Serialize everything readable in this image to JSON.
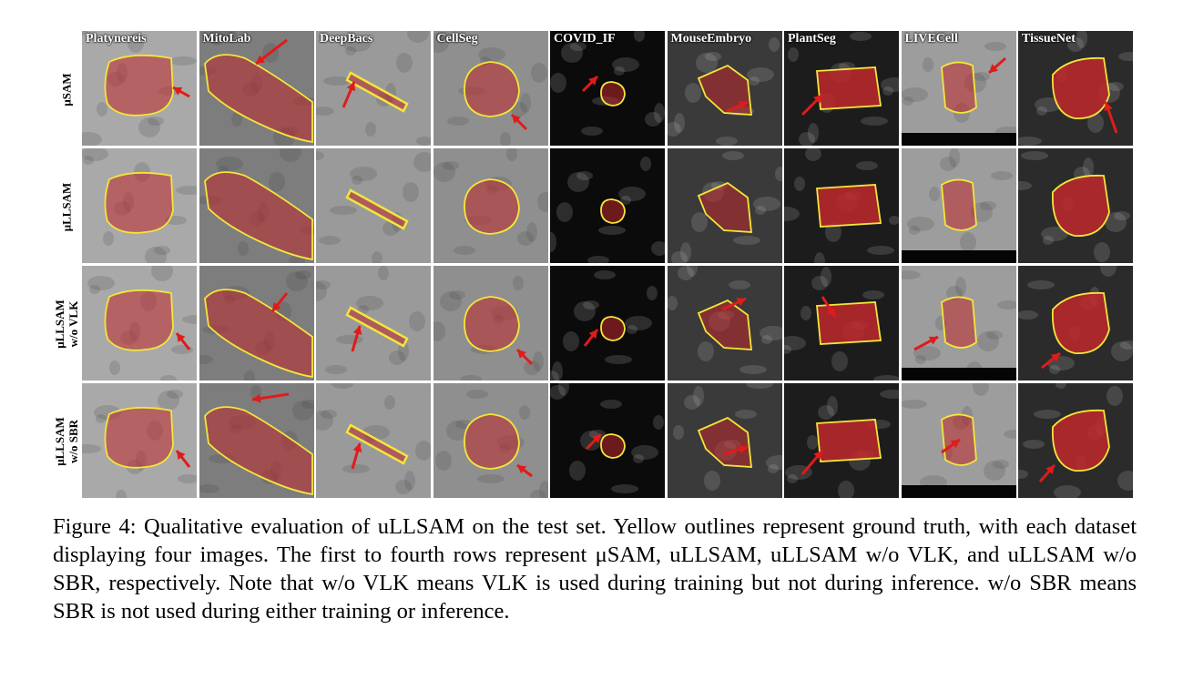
{
  "figure": {
    "columns": [
      "Platynereis",
      "MitoLab",
      "DeepBacs",
      "CellSeg",
      "COVID_IF",
      "MouseEmbryo",
      "PlantSeg",
      "LIVECell",
      "TissueNet"
    ],
    "rows": [
      {
        "label_line1": "μSAM",
        "label_line2": ""
      },
      {
        "label_line1": "μLLSAM",
        "label_line2": ""
      },
      {
        "label_line1": "μLLSAM",
        "label_line2": "w/o VLK"
      },
      {
        "label_line1": "μLLSAM",
        "label_line2": "w/o SBR"
      }
    ],
    "colors": {
      "outline": "#f2e63a",
      "mask": "#c0282c",
      "arrow": "#e01b1b"
    }
  },
  "caption": {
    "label": "Figure 4:",
    "text": "Qualitative evaluation of uLLSAM on the test set. Yellow outlines represent ground truth, with each dataset displaying four images. The first to fourth rows represent μSAM, uLLSAM, uLLSAM w/o VLK, and uLLSAM w/o SBR, respectively. Note that w/o VLK means VLK is used during training but not during inference. w/o SBR means SBR is not used during either training or inference."
  }
}
